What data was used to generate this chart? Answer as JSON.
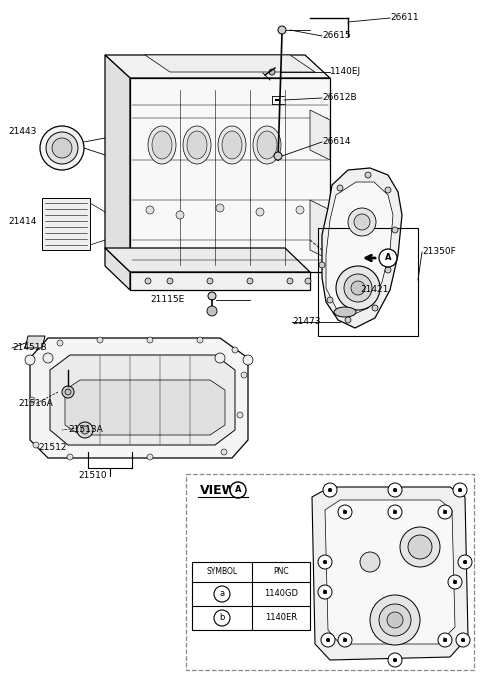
{
  "bg_color": "#ffffff",
  "lc": "#000000",
  "gray1": "#e8e8e8",
  "gray2": "#d8d8d8",
  "gray3": "#c8c8c8",
  "part_labels": [
    [
      "26611",
      390,
      18,
      "left"
    ],
    [
      "26615",
      322,
      36,
      "left"
    ],
    [
      "1140EJ",
      330,
      72,
      "left"
    ],
    [
      "26612B",
      322,
      98,
      "left"
    ],
    [
      "26614",
      322,
      142,
      "left"
    ],
    [
      "21443",
      8,
      132,
      "left"
    ],
    [
      "21414",
      8,
      222,
      "left"
    ],
    [
      "21115E",
      150,
      300,
      "left"
    ],
    [
      "21350F",
      422,
      252,
      "left"
    ],
    [
      "21421",
      360,
      290,
      "left"
    ],
    [
      "21473",
      292,
      322,
      "left"
    ],
    [
      "21451B",
      12,
      348,
      "left"
    ],
    [
      "21516A",
      18,
      404,
      "left"
    ],
    [
      "21513A",
      68,
      430,
      "left"
    ],
    [
      "21512",
      38,
      448,
      "left"
    ],
    [
      "21510",
      78,
      476,
      "left"
    ]
  ]
}
